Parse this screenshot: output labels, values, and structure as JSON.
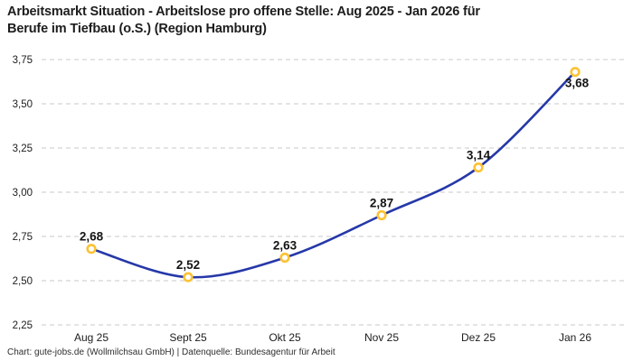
{
  "header": {
    "title": "Arbeitsmarkt Situation - Arbeitslose pro offene Stelle: Aug 2025 - Jan 2026 für\nBerufe im Tiefbau (o.S.) (Region Hamburg)"
  },
  "footer": {
    "credit": "Chart: gute-jobs.de (Wollmilchsau GmbH) | Datenquelle: Bundesagentur für Arbeit"
  },
  "chart_data": {
    "type": "line",
    "title": "Arbeitsmarkt Situation - Arbeitslose pro offene Stelle: Aug 2025 - Jan 2026 für Berufe im Tiefbau (o.S.) (Region Hamburg)",
    "categories": [
      "Aug 25",
      "Sept 25",
      "Okt 25",
      "Nov 25",
      "Dez 25",
      "Jan 26"
    ],
    "values": [
      2.68,
      2.52,
      2.63,
      2.87,
      3.14,
      3.68
    ],
    "value_labels": [
      "2,68",
      "2,52",
      "2,63",
      "2,87",
      "3,14",
      "3,68"
    ],
    "yticks": [
      {
        "value": 2.25,
        "label": "2,25"
      },
      {
        "value": 2.5,
        "label": "2,50"
      },
      {
        "value": 2.75,
        "label": "2,75"
      },
      {
        "value": 3.0,
        "label": "3,00"
      },
      {
        "value": 3.25,
        "label": "3,25"
      },
      {
        "value": 3.5,
        "label": "3,50"
      },
      {
        "value": 3.75,
        "label": "3,75"
      }
    ],
    "ylim": [
      2.25,
      3.75
    ],
    "xlabel": "",
    "ylabel": "",
    "grid": "horizontal-dashed",
    "legend": "none",
    "line_color": "#2638a8",
    "marker_color": "#fcc233",
    "marker_fill": "#ffffff",
    "gridline_color": "#c9c9c9",
    "text_color": "#1c1c1c"
  }
}
